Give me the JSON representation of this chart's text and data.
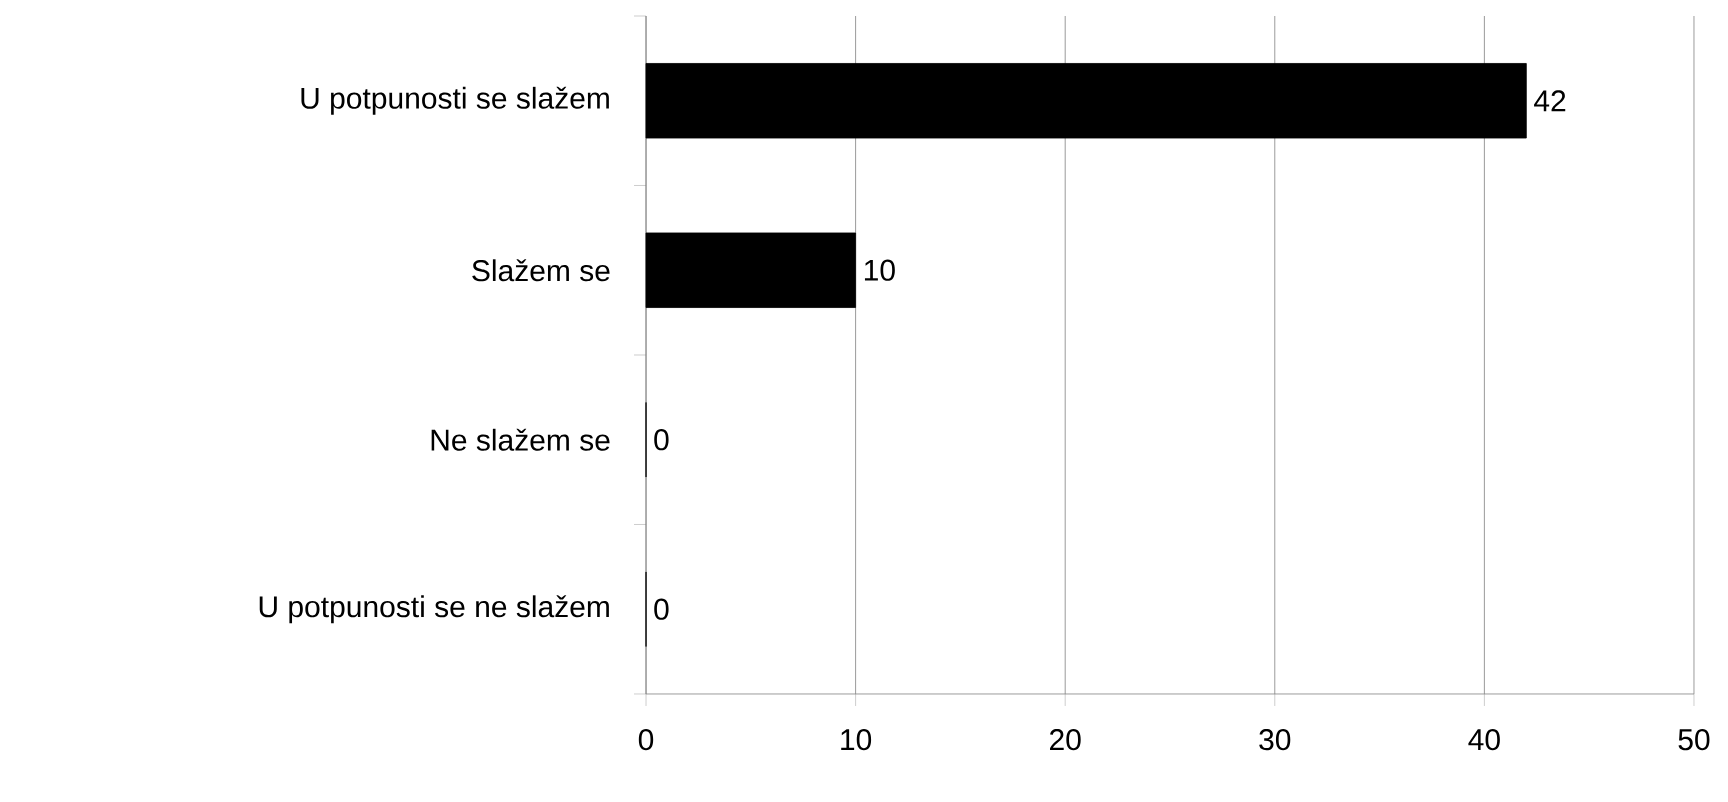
{
  "chart_data": {
    "type": "bar",
    "orientation": "horizontal",
    "categories": [
      "U potpunosti se slažem",
      "Slažem se",
      "Ne slažem se",
      "U potpunosti se ne slažem"
    ],
    "values": [
      42,
      10,
      0,
      0
    ],
    "color": "#000000",
    "xlim": [
      0,
      50
    ],
    "xticks": [
      0,
      10,
      20,
      30,
      40,
      50
    ],
    "grid": "x",
    "data_labels": true
  }
}
